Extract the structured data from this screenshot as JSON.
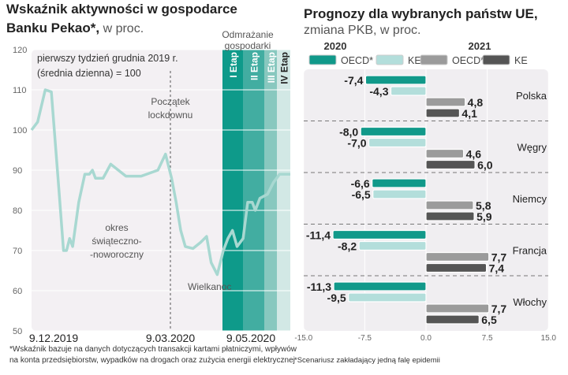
{
  "chart_data": [
    {
      "type": "line",
      "title": "Wskaźnik aktywności w gospodarce",
      "title2": "Banku Pekao*,",
      "subtitle": "w proc.",
      "note": [
        "pierwszy tydzień grudnia 2019 r.",
        "(średnia dzienna) = 100"
      ],
      "ylim": [
        50,
        120
      ],
      "yticks": [
        "120",
        "110",
        "100",
        "90",
        "80",
        "70",
        "60",
        "50"
      ],
      "xticks": [
        "9.12.2019",
        "9.03.2020",
        "9.05.2020"
      ],
      "grid": true,
      "line_color": "#a8d8d1",
      "annotations": {
        "lockdown": [
          "Początek",
          "lockdownu"
        ],
        "holiday": [
          "okres",
          "świąteczno-",
          "-noworoczny"
        ],
        "easter": "Wielkanoc",
        "phases_title": [
          "Odmrażanie",
          "gospodarki"
        ]
      },
      "phases": [
        {
          "label": "I Etap",
          "color": "#0e9a8a"
        },
        {
          "label": "II Etap",
          "color": "#42ada1"
        },
        {
          "label": "III Etap",
          "color": "#88c8bf"
        },
        {
          "label": "IV Etap",
          "color": "#d2e8e5"
        }
      ],
      "series": [
        {
          "x": [
            "9.12.2019",
            "13.12.2019",
            "18.12.2019",
            "22.12.2019",
            "27.12.2019",
            "30.12.2019",
            "1.01.2020",
            "3.01.2020",
            "5.01.2020",
            "9.01.2020",
            "13.01.2020",
            "16.01.2020",
            "18.01.2020",
            "20.01.2020",
            "25.01.2020",
            "30.01.2020",
            "4.02.2020",
            "9.02.2020",
            "19.02.2020",
            "1.03.2020",
            "6.03.2020",
            "10.03.2020",
            "13.03.2020",
            "16.03.2020",
            "19.03.2020",
            "24.03.2020",
            "29.03.2020",
            "2.04.2020",
            "5.04.2020",
            "9.04.2020",
            "13.04.2020",
            "16.04.2020",
            "19.04.2020",
            "22.04.2020",
            "26.04.2020",
            "29.04.2020",
            "2.05.2020",
            "4.05.2020",
            "7.05.2020",
            "12.05.2020",
            "16.05.2020",
            "20.05.2020",
            "27.05.2020"
          ],
          "values": [
            100,
            102,
            110,
            109.5,
            85,
            70,
            70,
            73,
            71,
            82,
            89,
            89,
            90,
            88,
            88,
            91.5,
            90,
            88.5,
            88.5,
            90,
            94,
            88,
            82,
            75,
            71,
            70.5,
            72,
            73.5,
            67,
            64,
            70,
            73,
            75,
            71,
            73,
            82,
            82,
            80,
            83,
            84,
            87,
            89,
            89
          ]
        }
      ],
      "footnote": [
        "*Wskaźnik bazuje na danych dotyczących transakcji kartami płatniczymi, wpływów",
        "na konta przedsiębiorstw, wypadków na drogach oraz zużycia energii elektrycznej"
      ]
    },
    {
      "type": "bar",
      "orientation": "horizontal",
      "title": "Prognozy dla wybranych państw UE,",
      "subtitle": "zmiana PKB, w proc.",
      "year_labels": [
        "2020",
        "2021"
      ],
      "categories": [
        "Polska",
        "Węgry",
        "Niemcy",
        "Francja",
        "Włochy"
      ],
      "xlim": [
        -15,
        15
      ],
      "xticks": [
        "-15.0",
        "-7.5",
        "0.0",
        "7.5",
        "15.0"
      ],
      "series": [
        {
          "name": "OECD*",
          "year": "2020",
          "color": "#11998a",
          "values": [
            -7.4,
            -8.0,
            -6.6,
            -11.4,
            -11.3
          ],
          "labels": [
            "-7,4",
            "-8,0",
            "-6,6",
            "-11,4",
            "-11,3"
          ]
        },
        {
          "name": "KE",
          "year": "2020",
          "color": "#b3dedb",
          "values": [
            -4.3,
            -7.0,
            -6.5,
            -8.2,
            -9.5
          ],
          "labels": [
            "-4,3",
            "-7,0",
            "-6,5",
            "-8,2",
            "-9,5"
          ]
        },
        {
          "name": "OECD*",
          "year": "2021",
          "color": "#9b9b9b",
          "values": [
            4.8,
            4.6,
            5.8,
            7.7,
            7.7
          ],
          "labels": [
            "4,8",
            "4,6",
            "5,8",
            "7,7",
            "7,7"
          ]
        },
        {
          "name": "KE",
          "year": "2021",
          "color": "#555555",
          "values": [
            4.1,
            6.0,
            5.9,
            7.4,
            6.5
          ],
          "labels": [
            "4,1",
            "6,0",
            "5,9",
            "7,4",
            "6,5"
          ]
        }
      ],
      "footnote": "*Scenariusz zakładający jedną falę epidemii"
    }
  ]
}
